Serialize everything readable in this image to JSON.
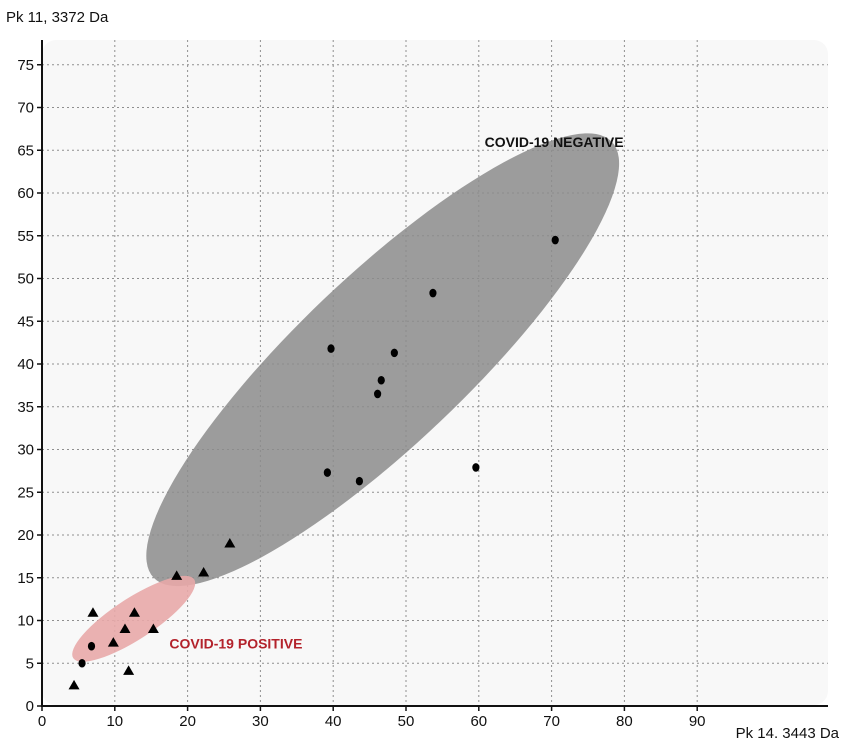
{
  "chart_data": {
    "type": "scatter",
    "ylabel": "Pk 11, 3372 Da",
    "xlabel": "Pk 14. 3443 Da",
    "xlim": [
      0,
      100
    ],
    "ylim": [
      0,
      80
    ],
    "grid": true,
    "x_ticks": [
      0,
      10,
      20,
      30,
      40,
      50,
      60,
      70,
      80,
      90
    ],
    "y_ticks": [
      0,
      5,
      10,
      15,
      20,
      25,
      30,
      35,
      40,
      45,
      50,
      55,
      60,
      65,
      70,
      75
    ],
    "series": [
      {
        "marker": "circle",
        "color": "#000000",
        "points": [
          {
            "x": 5.5,
            "y": 5
          },
          {
            "x": 6.8,
            "y": 7
          },
          {
            "x": 39.2,
            "y": 27.3
          },
          {
            "x": 39.7,
            "y": 41.8
          },
          {
            "x": 43.6,
            "y": 26.3
          },
          {
            "x": 46.1,
            "y": 36.5
          },
          {
            "x": 46.6,
            "y": 38.1
          },
          {
            "x": 48.4,
            "y": 41.3
          },
          {
            "x": 53.7,
            "y": 48.3
          },
          {
            "x": 59.6,
            "y": 27.9
          },
          {
            "x": 70.5,
            "y": 54.5
          }
        ]
      },
      {
        "marker": "triangle",
        "color": "#000000",
        "points": [
          {
            "x": 4.4,
            "y": 2.5
          },
          {
            "x": 7.0,
            "y": 11
          },
          {
            "x": 9.8,
            "y": 7.5
          },
          {
            "x": 11.4,
            "y": 9.1
          },
          {
            "x": 11.9,
            "y": 4.2
          },
          {
            "x": 12.7,
            "y": 11
          },
          {
            "x": 15.3,
            "y": 9.1
          },
          {
            "x": 18.5,
            "y": 15.3
          },
          {
            "x": 22.2,
            "y": 15.7
          },
          {
            "x": 25.8,
            "y": 19.1
          }
        ]
      }
    ],
    "regions": [
      {
        "label": "COVID-19 NEGATIVE",
        "color": "#8c8c8c",
        "opacity": 0.85,
        "center": [
          46.8,
          40.5
        ],
        "rx": 40.5,
        "ry": 10.7,
        "angle_deg": 39
      },
      {
        "label": "COVID-19 POSITIVE",
        "color": "#e8a8a8",
        "opacity": 0.9,
        "center": [
          12.6,
          10.2
        ],
        "rx": 9.5,
        "ry": 2.6,
        "angle_deg": 29
      }
    ],
    "annotations": [
      {
        "text": "COVID-19 NEGATIVE",
        "x": 60.8,
        "y": 65.4,
        "color": "#111111"
      },
      {
        "text": "COVID-19 POSITIVE",
        "x": 17.5,
        "y": 6.7,
        "color": "#b3222b"
      }
    ]
  }
}
